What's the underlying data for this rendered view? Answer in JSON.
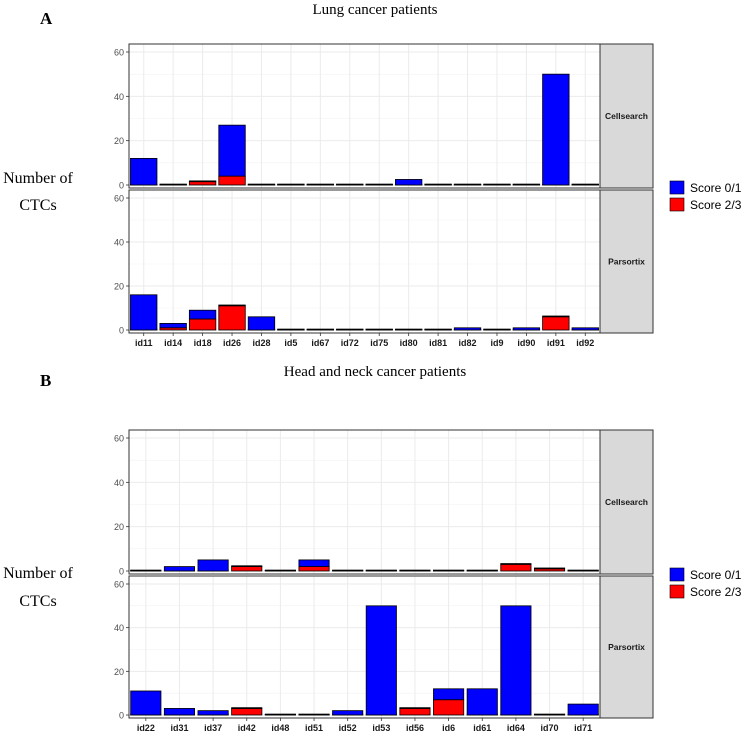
{
  "chart_data": [
    {
      "type": "bar",
      "stacked": true,
      "panel_letter": "A",
      "title": "Lung cancer patients",
      "ylabel": "Number of CTCs",
      "ylim": [
        0,
        60
      ],
      "yticks": [
        0,
        20,
        40,
        60
      ],
      "grid": true,
      "legend_position": "right",
      "categories": [
        "id11",
        "id14",
        "id18",
        "id26",
        "id28",
        "id5",
        "id67",
        "id72",
        "id75",
        "id80",
        "id81",
        "id82",
        "id9",
        "id90",
        "id91",
        "id92"
      ],
      "facets": [
        {
          "label": "Cellsearch",
          "series": [
            {
              "name": "Score 2/3",
              "values": [
                0,
                0,
                1.5,
                4,
                0,
                0,
                0,
                0,
                0,
                0,
                0,
                0,
                0,
                0,
                0,
                0
              ]
            },
            {
              "name": "Score 0/1",
              "values": [
                12,
                0,
                0,
                23,
                0,
                0,
                0,
                0,
                0,
                2.5,
                0,
                0,
                0,
                0,
                50,
                0
              ]
            }
          ]
        },
        {
          "label": "Parsortix",
          "series": [
            {
              "name": "Score 2/3",
              "values": [
                0,
                1,
                5,
                11,
                0,
                0,
                0,
                0,
                0,
                0,
                0,
                0,
                0,
                0,
                6,
                0
              ]
            },
            {
              "name": "Score 0/1",
              "values": [
                16,
                2,
                4,
                0,
                6,
                0,
                0,
                0,
                0,
                0,
                0,
                1,
                0,
                1,
                0,
                1
              ]
            }
          ]
        }
      ]
    },
    {
      "type": "bar",
      "stacked": true,
      "panel_letter": "B",
      "title": "Head and neck cancer patients",
      "ylabel": "Number of CTCs",
      "ylim": [
        0,
        60
      ],
      "yticks": [
        0,
        20,
        40,
        60
      ],
      "grid": true,
      "legend_position": "right",
      "categories": [
        "id22",
        "id31",
        "id37",
        "id42",
        "id48",
        "id51",
        "id52",
        "id53",
        "id56",
        "id6",
        "id61",
        "id64",
        "id70",
        "id71"
      ],
      "facets": [
        {
          "label": "Cellsearch",
          "series": [
            {
              "name": "Score 2/3",
              "values": [
                0,
                0,
                0,
                2,
                0,
                2,
                0,
                0,
                0,
                0,
                0,
                3,
                1,
                0
              ]
            },
            {
              "name": "Score 0/1",
              "values": [
                0,
                2,
                5,
                0,
                0,
                3,
                0,
                0,
                0,
                0,
                0,
                0,
                0,
                0
              ]
            }
          ]
        },
        {
          "label": "Parsortix",
          "series": [
            {
              "name": "Score 2/3",
              "values": [
                0,
                0,
                0,
                3,
                0,
                0,
                0,
                0,
                3,
                7,
                0,
                0,
                0,
                0
              ]
            },
            {
              "name": "Score 0/1",
              "values": [
                11,
                3,
                2,
                0,
                0,
                0,
                2,
                50,
                0,
                5,
                12,
                50,
                0,
                5
              ]
            }
          ]
        }
      ]
    }
  ],
  "legend": {
    "items": [
      {
        "label": "Score 0/1",
        "color": "#0000ff"
      },
      {
        "label": "Score 2/3",
        "color": "#ff0000"
      }
    ]
  },
  "colors": {
    "score_01": "#0000ff",
    "score_23": "#ff0000",
    "strip": "#d9d9d9",
    "grid": "#ebebeb",
    "bar_outline": "#000000"
  }
}
